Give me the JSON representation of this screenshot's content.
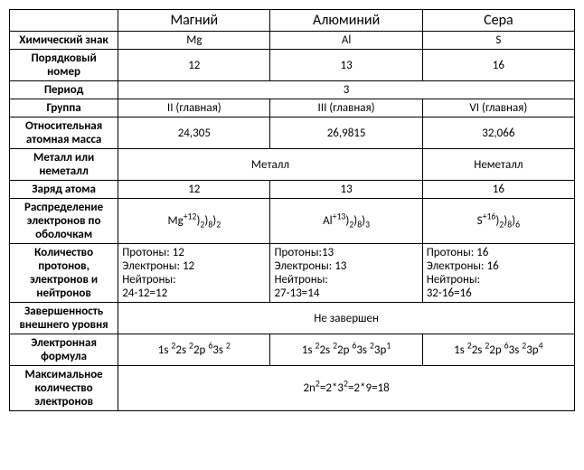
{
  "columns": {
    "mg": "Магний",
    "al": "Алюминий",
    "s": "Сера"
  },
  "rows": {
    "symbol": {
      "label": "Химический знак",
      "mg": "Mg",
      "al": "Al",
      "s": "S"
    },
    "atomic_number": {
      "label": "Порядковый номер",
      "mg": "12",
      "al": "13",
      "s": "16"
    },
    "period": {
      "label": "Период",
      "merged": "3"
    },
    "group": {
      "label": "Группа",
      "mg": "II (главная)",
      "al": "III (главная)",
      "s": "VI (главная)"
    },
    "mass": {
      "label": "Относительная атомная масса",
      "mg": "24,305",
      "al": "26,9815",
      "s": "32,066"
    },
    "metal": {
      "label": "Металл или неметалл",
      "mg_al": "Металл",
      "s": "Неметалл"
    },
    "charge": {
      "label": "Заряд атома",
      "mg": "12",
      "al": "13",
      "s": "16"
    },
    "shells": {
      "label": "Распределение электронов по оболочкам"
    },
    "counts": {
      "label": "Количество протонов, электронов и нейтронов",
      "mg": {
        "p": "Протоны: 12",
        "e": "Электроны: 12",
        "n": "Нейтроны:",
        "calc": "24-12=12"
      },
      "al": {
        "p": "Протоны:13",
        "e": "Электроны: 13",
        "n": "Нейтроны:",
        "calc": "27-13=14"
      },
      "s": {
        "p": "Протоны: 16",
        "e": "Электроны: 16",
        "n": "Нейтроны:",
        "calc": "32-16=16"
      }
    },
    "outer": {
      "label": "Завершенность внешнего уровня",
      "merged": "Не завершен"
    },
    "econfig": {
      "label": "Электронная формула"
    },
    "maxe": {
      "label": "Максимальное количество электронов"
    }
  }
}
